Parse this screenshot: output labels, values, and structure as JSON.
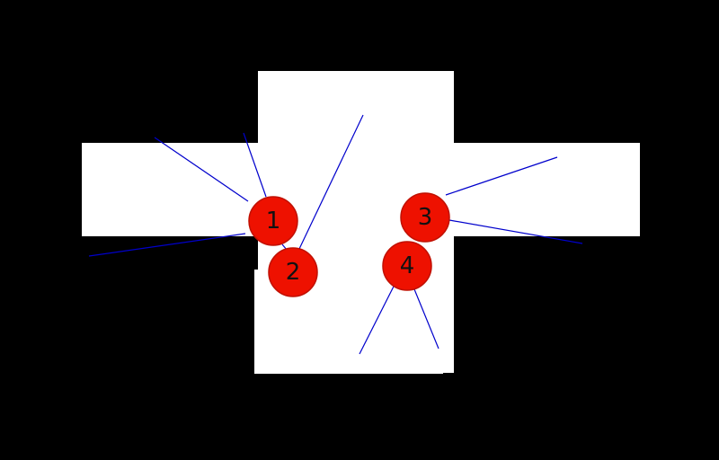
{
  "colors": {
    "background": "#000000",
    "floor": "#ffffff",
    "token_fill": "#ee1100",
    "ray": "#0000cc"
  },
  "tokens": [
    {
      "label": "1"
    },
    {
      "label": "2"
    },
    {
      "label": "3"
    },
    {
      "label": "4"
    }
  ]
}
